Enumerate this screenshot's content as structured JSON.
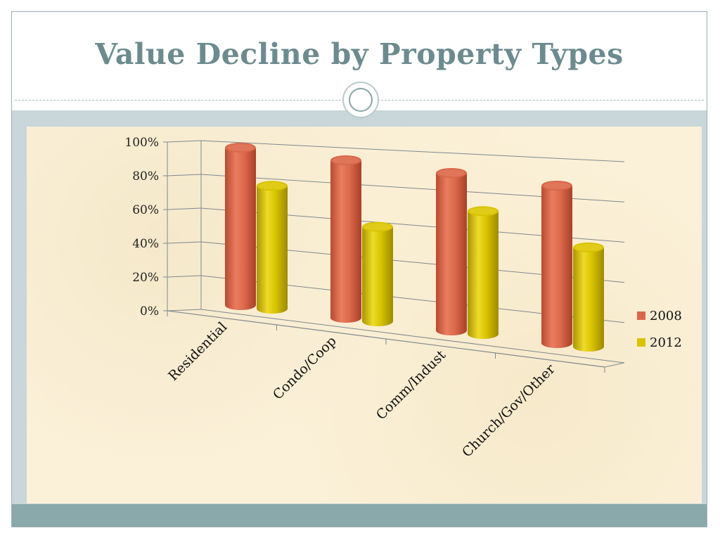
{
  "title": "Value Decline by Property Types",
  "colors": {
    "series_2008": "#d9684a",
    "series_2012": "#d8c300",
    "title": "#6d8b8f"
  },
  "chart_data": {
    "type": "bar",
    "style": "3d-cylinder",
    "categories": [
      "Residential",
      "Condo/Coop",
      "Comm/Indust",
      "Church/Gov/Other"
    ],
    "series": [
      {
        "name": "2008",
        "values": [
          100,
          100,
          100,
          100
        ]
      },
      {
        "name": "2012",
        "values": [
          78,
          60,
          78,
          63
        ]
      }
    ],
    "ylim": [
      0,
      100
    ],
    "y_ticks": [
      "0%",
      "20%",
      "40%",
      "60%",
      "80%",
      "100%"
    ],
    "grid": true,
    "legend_position": "right"
  }
}
